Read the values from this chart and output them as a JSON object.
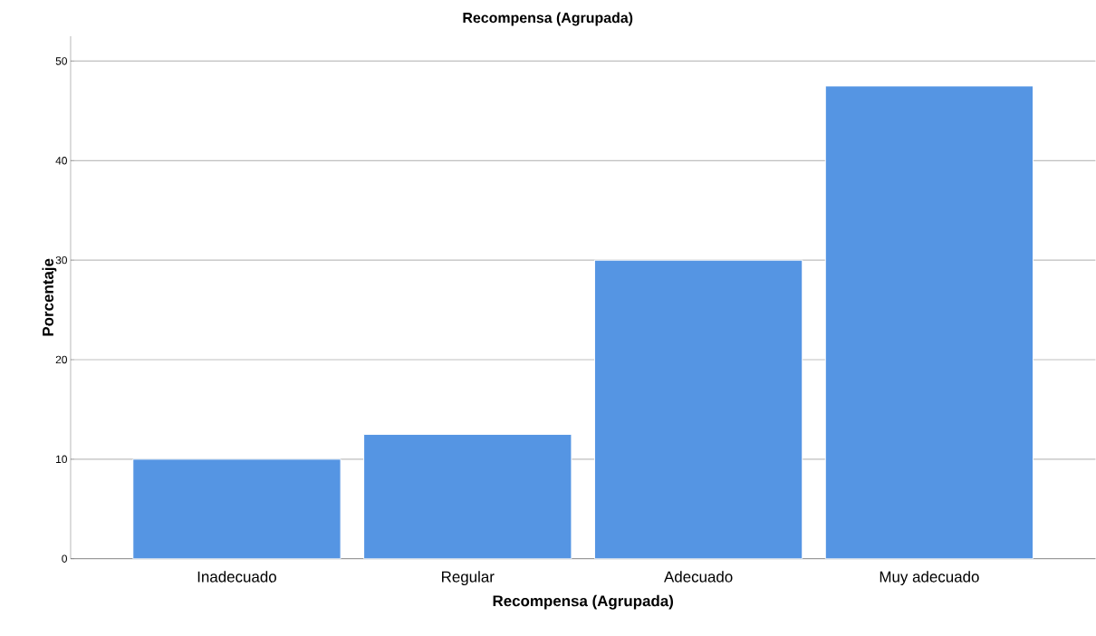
{
  "chart_data": {
    "type": "bar",
    "title": "Recompensa  (Agrupada)",
    "xlabel": "Recompensa  (Agrupada)",
    "ylabel": "Porcentaje",
    "categories": [
      "Inadecuado",
      "Regular",
      "Adecuado",
      "Muy adecuado"
    ],
    "values": [
      10,
      12.5,
      30,
      47.5
    ],
    "color": "#5595e3",
    "ylim": [
      0,
      52.5
    ],
    "yticks": [
      0,
      10,
      20,
      30,
      40,
      50
    ],
    "grid": "y"
  }
}
